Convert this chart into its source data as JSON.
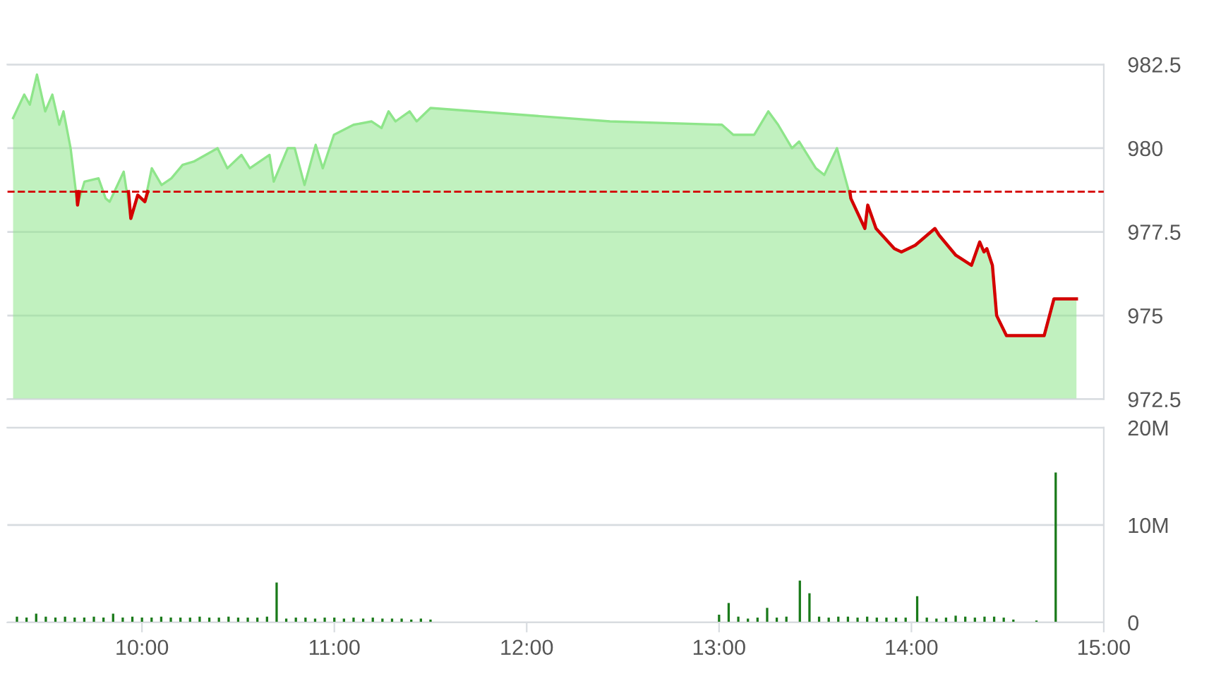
{
  "chart_data": [
    {
      "type": "area",
      "xlim": [
        9.3,
        15
      ],
      "ylim": [
        972.5,
        982.5
      ],
      "yticks": [
        982.5,
        980,
        977.5,
        975,
        972.5
      ],
      "grid": "y",
      "tick_labels": "y",
      "ref_lines": [
        {
          "axis": "y",
          "value": 978.7,
          "color": "#d40000",
          "line_style": "dashed"
        }
      ],
      "series": [
        {
          "type": "line",
          "color": "#d40000",
          "x": [
            9.66,
            9.665,
            9.675,
            9.7,
            9.93,
            9.942,
            9.978,
            10.015,
            10.03,
            12.0,
            13.68,
            13.685,
            13.758,
            13.773,
            13.816,
            13.911,
            13.948,
            14.02,
            14.122,
            14.144,
            14.231,
            14.312,
            14.355,
            14.377,
            14.392,
            14.421,
            14.443,
            14.494,
            14.69,
            14.741,
            14.858
          ],
          "values": [
            978.7,
            978.3,
            978.7,
            null,
            978.7,
            977.9,
            978.6,
            978.4,
            978.7,
            null,
            978.7,
            978.5,
            977.6,
            978.3,
            977.6,
            977.0,
            976.9,
            977.1,
            977.6,
            977.4,
            976.8,
            976.5,
            977.2,
            976.9,
            977.0,
            976.5,
            975.0,
            974.4,
            974.4,
            975.5,
            975.5
          ]
        },
        {
          "color": "#8ee58a",
          "x": [
            9.33,
            9.388,
            9.417,
            9.454,
            9.497,
            9.534,
            9.57,
            9.592,
            9.629,
            9.665,
            9.701,
            9.774,
            9.811,
            9.832,
            9.905,
            9.942,
            9.978,
            10.015,
            10.051,
            10.102,
            10.153,
            10.211,
            10.269,
            10.393,
            10.444,
            10.517,
            10.561,
            10.663,
            10.685,
            10.758,
            10.794,
            10.845,
            10.903,
            10.94,
            10.998,
            11.1,
            11.194,
            11.245,
            11.282,
            11.318,
            11.391,
            11.428,
            11.5,
            12.433,
            13.015,
            13.074,
            13.183,
            13.256,
            13.307,
            13.379,
            13.416,
            13.503,
            13.547,
            13.613,
            13.685,
            13.758,
            13.773,
            13.816,
            13.911,
            13.948,
            14.02,
            14.122,
            14.144,
            14.231,
            14.312,
            14.355,
            14.377,
            14.392,
            14.421,
            14.443,
            14.494,
            14.69,
            14.741,
            14.858
          ],
          "values": [
            980.9,
            981.6,
            981.3,
            982.2,
            981.1,
            981.6,
            980.7,
            981.1,
            980.0,
            978.3,
            979.0,
            979.1,
            978.5,
            978.4,
            979.3,
            977.9,
            978.6,
            978.4,
            979.4,
            978.9,
            979.1,
            979.5,
            979.6,
            980.0,
            979.4,
            979.8,
            979.4,
            979.8,
            979.0,
            980.0,
            980.0,
            978.9,
            980.1,
            979.4,
            980.4,
            980.7,
            980.8,
            980.6,
            981.1,
            980.8,
            981.1,
            980.8,
            981.2,
            980.8,
            980.7,
            980.4,
            980.4,
            981.1,
            980.7,
            980.0,
            980.2,
            979.4,
            979.2,
            980.0,
            978.5,
            977.6,
            978.3,
            977.6,
            977.0,
            976.9,
            977.1,
            977.6,
            977.4,
            976.8,
            976.5,
            977.2,
            976.9,
            977.0,
            976.5,
            975.0,
            974.4,
            974.4,
            975.5,
            975.5
          ]
        }
      ]
    },
    {
      "type": "bar",
      "xlim": [
        9.3,
        15
      ],
      "ylim": [
        0,
        20
      ],
      "grid": "y",
      "yticks": [
        {
          "value": 0,
          "label": "0"
        },
        {
          "value": 10,
          "label": "10M"
        },
        {
          "value": 20,
          "label": "20M"
        }
      ],
      "xticks": [
        {
          "value": 10,
          "label": "10:00"
        },
        {
          "value": 11,
          "label": "11:00"
        },
        {
          "value": 12,
          "label": "12:00"
        },
        {
          "value": 13,
          "label": "13:00"
        },
        {
          "value": 14,
          "label": "14:00"
        },
        {
          "value": 15,
          "label": "15:00"
        }
      ],
      "series": [
        {
          "color": "#1a7a1a",
          "x": [
            9.35,
            9.4,
            9.45,
            9.5,
            9.55,
            9.6,
            9.65,
            9.7,
            9.75,
            9.8,
            9.85,
            9.9,
            9.95,
            10.0,
            10.05,
            10.1,
            10.15,
            10.2,
            10.25,
            10.3,
            10.35,
            10.4,
            10.45,
            10.5,
            10.55,
            10.6,
            10.65,
            10.7,
            10.75,
            10.8,
            10.85,
            10.9,
            10.95,
            11.0,
            11.05,
            11.1,
            11.15,
            11.2,
            11.25,
            11.3,
            11.35,
            11.4,
            11.45,
            11.5,
            13.0,
            13.05,
            13.1,
            13.15,
            13.2,
            13.25,
            13.3,
            13.35,
            13.42,
            13.47,
            13.52,
            13.57,
            13.62,
            13.67,
            13.72,
            13.77,
            13.82,
            13.87,
            13.92,
            13.97,
            14.03,
            14.08,
            14.13,
            14.18,
            14.23,
            14.28,
            14.33,
            14.38,
            14.43,
            14.48,
            14.53,
            14.65,
            14.75
          ],
          "values": [
            0.6,
            0.5,
            0.9,
            0.6,
            0.5,
            0.6,
            0.5,
            0.5,
            0.6,
            0.5,
            0.9,
            0.5,
            0.6,
            0.5,
            0.5,
            0.6,
            0.5,
            0.5,
            0.5,
            0.6,
            0.5,
            0.5,
            0.6,
            0.5,
            0.5,
            0.5,
            0.6,
            4.1,
            0.4,
            0.5,
            0.5,
            0.4,
            0.5,
            0.5,
            0.4,
            0.5,
            0.4,
            0.5,
            0.4,
            0.4,
            0.4,
            0.3,
            0.4,
            0.3,
            0.8,
            2.0,
            0.6,
            0.4,
            0.5,
            1.5,
            0.5,
            0.6,
            4.3,
            3.0,
            0.6,
            0.5,
            0.6,
            0.6,
            0.5,
            0.6,
            0.5,
            0.5,
            0.5,
            0.5,
            2.7,
            0.5,
            0.4,
            0.5,
            0.7,
            0.6,
            0.5,
            0.6,
            0.6,
            0.5,
            0.3,
            0.2,
            15.4
          ]
        }
      ]
    }
  ]
}
